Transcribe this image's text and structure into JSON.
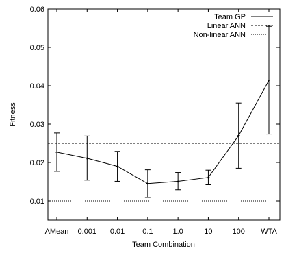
{
  "chart_data": {
    "type": "line",
    "xlabel": "Team Combination",
    "ylabel": "Fitness",
    "categories": [
      "AMean",
      "0.001",
      "0.01",
      "0.1",
      "1.0",
      "10",
      "100",
      "WTA"
    ],
    "ylim": [
      0.005,
      0.06
    ],
    "yticks": [
      "0.01",
      "0.02",
      "0.03",
      "0.04",
      "0.05",
      "0.06"
    ],
    "grid": false,
    "legend_position": "top-right",
    "series": [
      {
        "name": "Team GP",
        "style": "solid",
        "values": [
          0.0227,
          0.0211,
          0.019,
          0.0145,
          0.0151,
          0.0161,
          0.027,
          0.0414
        ],
        "err_low": [
          0.0177,
          0.0154,
          0.0151,
          0.0109,
          0.0129,
          0.0142,
          0.0185,
          0.0274
        ],
        "err_high": [
          0.0277,
          0.0269,
          0.0229,
          0.0181,
          0.0174,
          0.018,
          0.0355,
          0.0555
        ]
      },
      {
        "name": "Linear ANN",
        "style": "dashed",
        "constant": 0.025
      },
      {
        "name": "Non-linear ANN",
        "style": "dotted",
        "constant": 0.01
      }
    ]
  }
}
